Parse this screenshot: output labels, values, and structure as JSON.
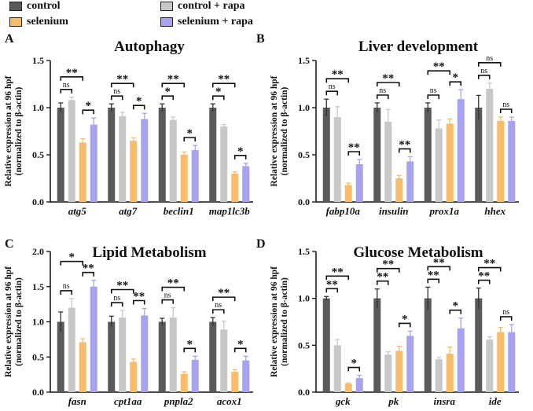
{
  "legend": [
    {
      "label": "control",
      "color": "#5a5a5a"
    },
    {
      "label": "control + rapa",
      "color": "#c8c8c8"
    },
    {
      "label": "selenium",
      "color": "#f7bd6b"
    },
    {
      "label": "selenium + rapa",
      "color": "#a7a3f0"
    }
  ],
  "series_colors": [
    "#5a5a5a",
    "#c8c8c8",
    "#f7bd6b",
    "#a7a3f0"
  ],
  "ylabel_line1": "Relative expression at 96 hpf",
  "ylabel_line2": "(normalized to β-actin)",
  "chart_data": [
    {
      "type": "bar",
      "panel": "A",
      "title": "Autophagy",
      "categories": [
        "atg5",
        "atg7",
        "beclin1",
        "map1lc3b"
      ],
      "series": [
        {
          "name": "control",
          "values": [
            1.0,
            1.0,
            1.0,
            1.0
          ],
          "err": [
            0.05,
            0.04,
            0.04,
            0.04
          ]
        },
        {
          "name": "control + rapa",
          "values": [
            1.08,
            0.91,
            0.87,
            0.8
          ],
          "err": [
            0.03,
            0.04,
            0.03,
            0.02
          ]
        },
        {
          "name": "selenium",
          "values": [
            0.63,
            0.65,
            0.5,
            0.3
          ],
          "err": [
            0.04,
            0.03,
            0.03,
            0.02
          ]
        },
        {
          "name": "selenium + rapa",
          "values": [
            0.82,
            0.88,
            0.55,
            0.38
          ],
          "err": [
            0.07,
            0.06,
            0.05,
            0.03
          ]
        }
      ],
      "ylim": [
        0,
        1.5
      ],
      "yticks": [
        "0.0",
        "0.5",
        "1.0",
        "1.5"
      ],
      "sig": [
        [
          "ns",
          "*",
          "**"
        ],
        [
          "ns",
          "*",
          "**"
        ],
        [
          "*",
          "*",
          "**"
        ],
        [
          "*",
          "*",
          "**"
        ]
      ]
    },
    {
      "type": "bar",
      "panel": "B",
      "title": "Liver development",
      "categories": [
        "fabp10a",
        "insulin",
        "prox1a",
        "hhex"
      ],
      "series": [
        {
          "name": "control",
          "values": [
            1.0,
            1.0,
            1.0,
            1.0
          ],
          "err": [
            0.09,
            0.05,
            0.05,
            0.13
          ]
        },
        {
          "name": "control + rapa",
          "values": [
            0.9,
            0.85,
            0.78,
            1.2
          ],
          "err": [
            0.11,
            0.13,
            0.09,
            0.06
          ]
        },
        {
          "name": "selenium",
          "values": [
            0.18,
            0.25,
            0.83,
            0.86
          ],
          "err": [
            0.02,
            0.03,
            0.05,
            0.04
          ]
        },
        {
          "name": "selenium + rapa",
          "values": [
            0.4,
            0.43,
            1.09,
            0.86
          ],
          "err": [
            0.05,
            0.05,
            0.1,
            0.04
          ]
        }
      ],
      "ylim": [
        0,
        1.5
      ],
      "yticks": [
        "0.0",
        "0.5",
        "1.0",
        "1.5"
      ],
      "sig": [
        [
          "ns",
          "**",
          "**"
        ],
        [
          "ns",
          "**",
          "**"
        ],
        [
          "ns",
          "*",
          "**"
        ],
        [
          "ns",
          "ns",
          "ns"
        ]
      ]
    },
    {
      "type": "bar",
      "panel": "C",
      "title": "Lipid Metabolism",
      "categories": [
        "fasn",
        "cpt1aa",
        "pnpla2",
        "acox1"
      ],
      "series": [
        {
          "name": "control",
          "values": [
            1.0,
            1.0,
            1.0,
            1.0
          ],
          "err": [
            0.14,
            0.08,
            0.05,
            0.06
          ]
        },
        {
          "name": "control + rapa",
          "values": [
            1.2,
            1.06,
            1.06,
            0.89
          ],
          "err": [
            0.13,
            0.1,
            0.14,
            0.12
          ]
        },
        {
          "name": "selenium",
          "values": [
            0.71,
            0.43,
            0.26,
            0.29
          ],
          "err": [
            0.05,
            0.04,
            0.03,
            0.03
          ]
        },
        {
          "name": "selenium + rapa",
          "values": [
            1.5,
            1.09,
            0.46,
            0.45
          ],
          "err": [
            0.09,
            0.1,
            0.05,
            0.06
          ]
        }
      ],
      "ylim": [
        0,
        2.0
      ],
      "yticks": [
        "0.0",
        "0.5",
        "1.0",
        "1.5",
        "2.0"
      ],
      "sig": [
        [
          "ns",
          "**",
          "*"
        ],
        [
          "ns",
          "**",
          "**"
        ],
        [
          "ns",
          "*",
          "**"
        ],
        [
          "ns",
          "*",
          "**"
        ]
      ]
    },
    {
      "type": "bar",
      "panel": "D",
      "title": "Glucose Metabolism",
      "categories": [
        "gck",
        "pk",
        "insra",
        "ide"
      ],
      "series": [
        {
          "name": "control",
          "values": [
            1.0,
            1.0,
            1.0,
            1.0
          ],
          "err": [
            0.02,
            0.1,
            0.12,
            0.11
          ]
        },
        {
          "name": "control + rapa",
          "values": [
            0.5,
            0.4,
            0.35,
            0.56
          ],
          "err": [
            0.06,
            0.03,
            0.02,
            0.03
          ]
        },
        {
          "name": "selenium",
          "values": [
            0.09,
            0.44,
            0.41,
            0.64
          ],
          "err": [
            0.01,
            0.05,
            0.07,
            0.05
          ]
        },
        {
          "name": "selenium + rapa",
          "values": [
            0.15,
            0.6,
            0.68,
            0.64
          ],
          "err": [
            0.03,
            0.05,
            0.11,
            0.08
          ]
        }
      ],
      "ylim": [
        0,
        1.5
      ],
      "yticks": [
        "0.0",
        "0.5",
        "1.0",
        "1.5"
      ],
      "sig": [
        [
          "**",
          "*",
          "**"
        ],
        [
          "**",
          "*",
          "**"
        ],
        [
          "**",
          "*",
          "**"
        ],
        [
          "**",
          "ns",
          "**"
        ]
      ]
    }
  ]
}
